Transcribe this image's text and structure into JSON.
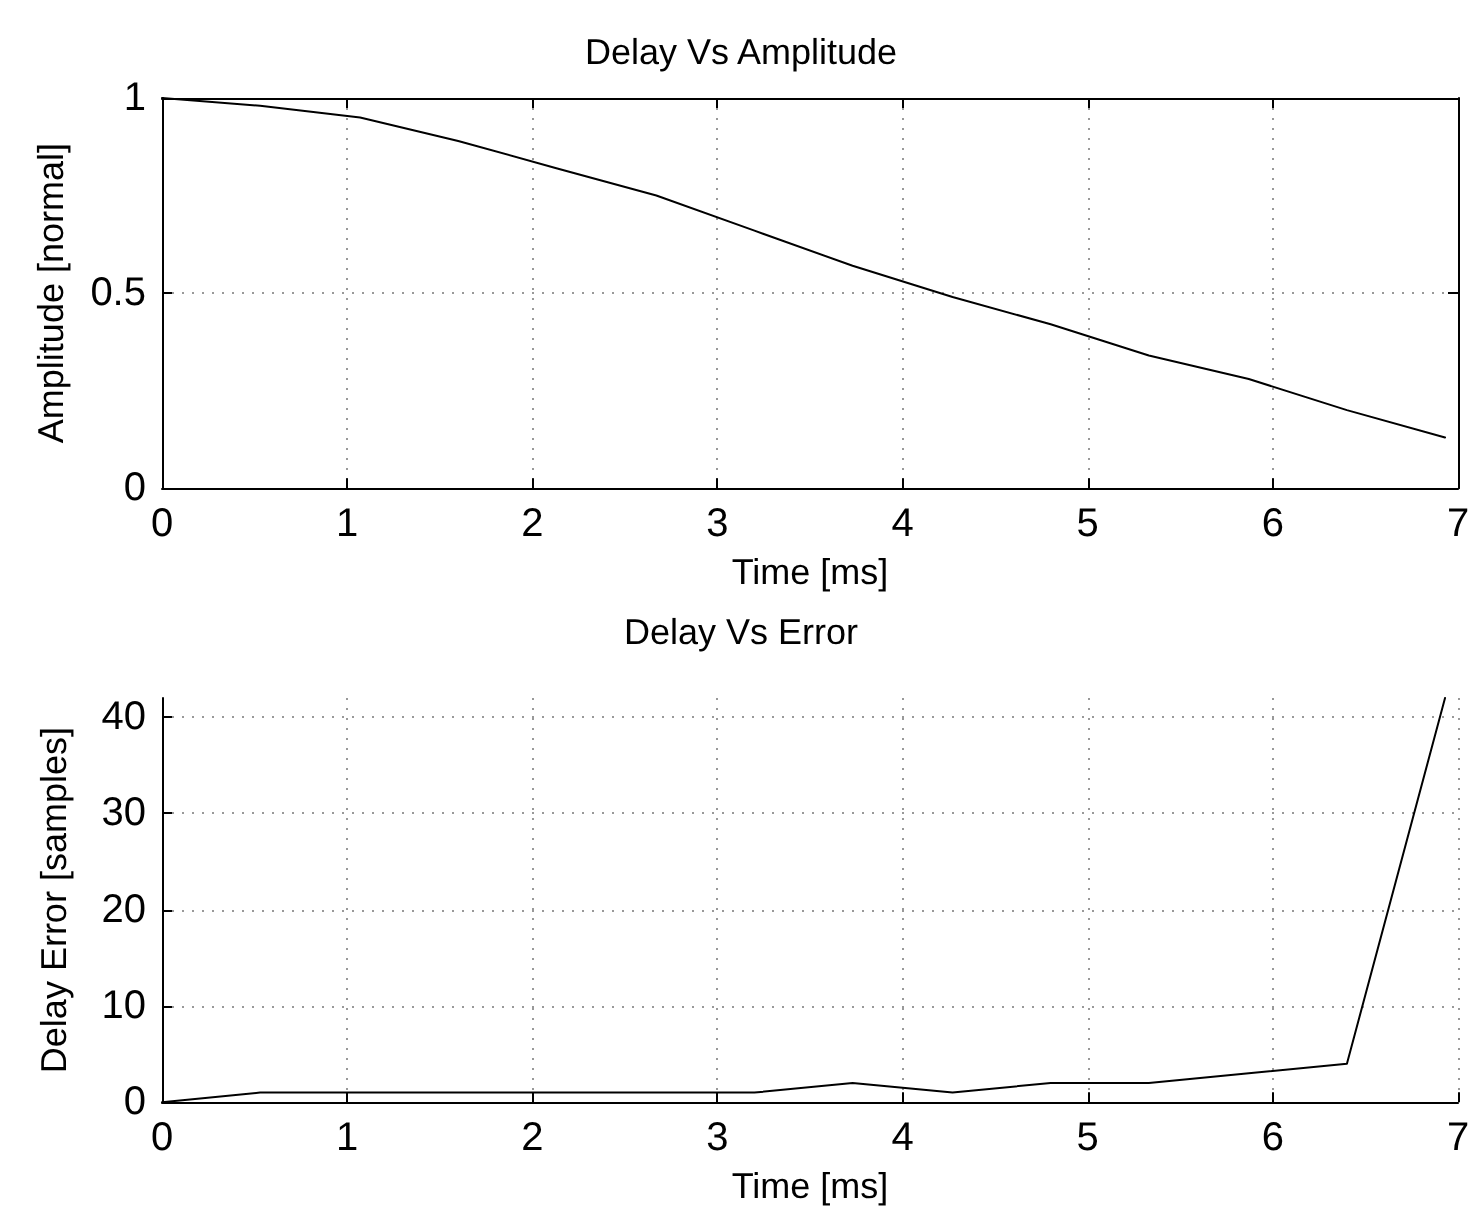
{
  "chart_data": [
    {
      "type": "line",
      "title": "Delay Vs Amplitude",
      "xlabel": "Time [ms]",
      "ylabel": "Amplitude [normal]",
      "series": [
        {
          "color": "#000000",
          "x": [
            0,
            0.53,
            1.07,
            1.6,
            2.13,
            2.67,
            3.2,
            3.73,
            4.27,
            4.8,
            5.33,
            5.87,
            6.4,
            6.93
          ],
          "values": [
            1.0,
            0.98,
            0.95,
            0.89,
            0.82,
            0.75,
            0.66,
            0.57,
            0.49,
            0.42,
            0.34,
            0.28,
            0.2,
            0.13
          ]
        }
      ],
      "xlim": [
        0,
        7
      ],
      "xticks": [
        0,
        1,
        2,
        3,
        4,
        5,
        6,
        7
      ],
      "ylim": [
        0,
        1
      ],
      "yticks": [
        0,
        0.5,
        1
      ],
      "grid": true,
      "marker": "none",
      "line_style": "solid"
    },
    {
      "type": "line",
      "title": "Delay Vs Error",
      "xlabel": "Time [ms]",
      "ylabel": "Delay Error [samples]",
      "series": [
        {
          "color": "#000000",
          "x": [
            0,
            0.53,
            1.07,
            1.6,
            2.13,
            2.67,
            3.2,
            3.73,
            4.27,
            4.8,
            5.33,
            5.87,
            6.4,
            6.93
          ],
          "values": [
            0,
            1,
            1,
            1,
            1,
            1,
            1,
            2,
            1,
            2,
            2,
            3,
            4,
            42
          ]
        }
      ],
      "xlim": [
        0,
        7
      ],
      "xticks": [
        0,
        1,
        2,
        3,
        4,
        5,
        6,
        7
      ],
      "ylim": [
        0,
        42
      ],
      "yticks": [
        0,
        10,
        20,
        30,
        40
      ],
      "grid": true,
      "marker": "none",
      "line_style": "solid"
    }
  ]
}
